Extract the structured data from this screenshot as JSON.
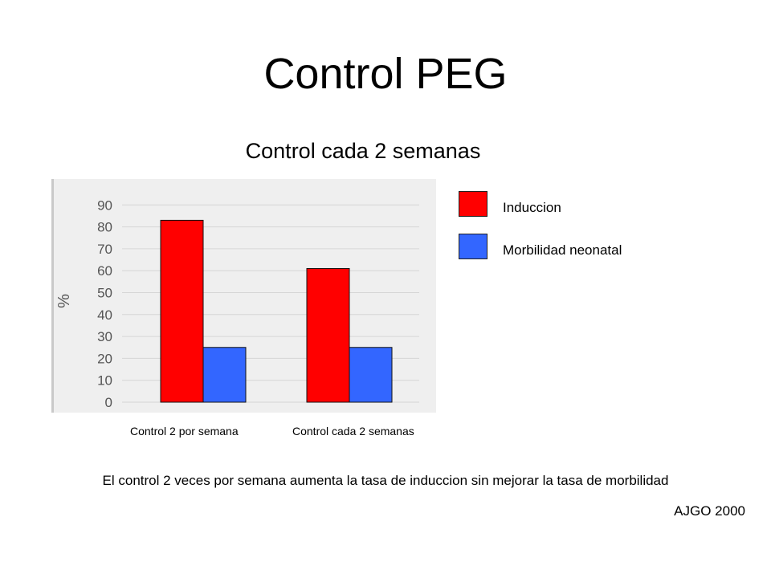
{
  "slide": {
    "title": "Control PEG",
    "subtitle": "Control cada 2 semanas",
    "note": "El control 2 veces por semana aumenta la tasa de induccion sin mejorar la tasa de morbilidad",
    "source": "AJGO 2000"
  },
  "chart_data": {
    "type": "bar",
    "ylabel": "%",
    "ylim": [
      0,
      90
    ],
    "yticks": [
      0,
      10,
      20,
      30,
      40,
      50,
      60,
      70,
      80,
      90
    ],
    "grid": true,
    "legend_position": "right",
    "categories": [
      "Control 2 por semana",
      "Control cada 2 semanas"
    ],
    "series": [
      {
        "name": "Induccion",
        "color": "#ff0000",
        "values": [
          83,
          61
        ]
      },
      {
        "name": "Morbilidad neonatal",
        "color": "#3366ff",
        "values": [
          25,
          25
        ]
      }
    ]
  }
}
